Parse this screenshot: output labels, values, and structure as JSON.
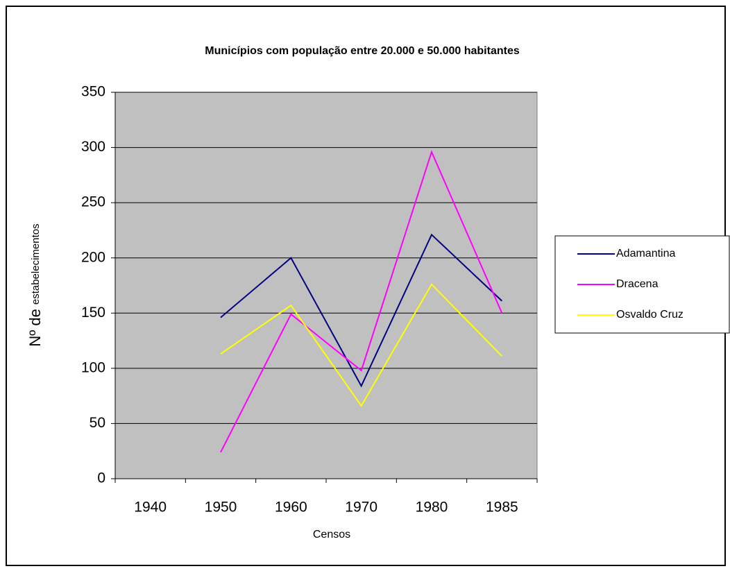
{
  "chart_data": {
    "type": "line",
    "title": "Municípios com população entre 20.000 e 50.000 habitantes",
    "xlabel": "Censos",
    "ylabel": [
      "Nº de",
      "estabelecimentos"
    ],
    "categories": [
      "1940",
      "1950",
      "1960",
      "1970",
      "1980",
      "1985"
    ],
    "series": [
      {
        "name": "Adamantina",
        "color": "#000080",
        "values": [
          null,
          146,
          200,
          84,
          221,
          161
        ]
      },
      {
        "name": "Dracena",
        "color": "#ff00ff",
        "values": [
          null,
          24,
          149,
          98,
          296,
          150
        ]
      },
      {
        "name": "Osvaldo Cruz",
        "color": "#ffff00",
        "values": [
          null,
          113,
          157,
          66,
          176,
          111
        ]
      }
    ],
    "ylim": [
      0,
      350
    ],
    "yticks": [
      0,
      50,
      100,
      150,
      200,
      250,
      300,
      350
    ],
    "grid": true,
    "plot_background": "#c0c0c0",
    "legend": "right"
  }
}
